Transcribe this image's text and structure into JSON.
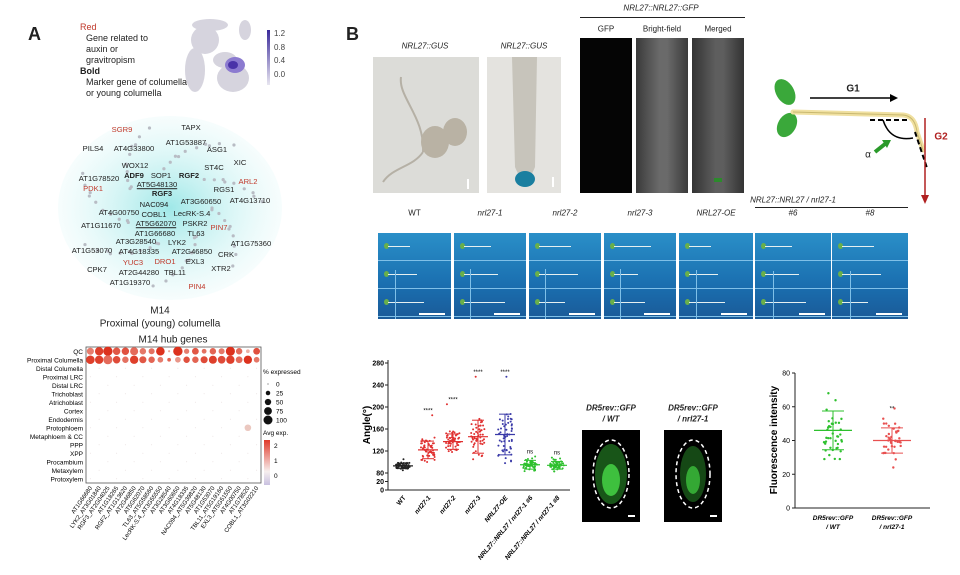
{
  "panel_a": {
    "label": "A",
    "legend": {
      "red_title": "Red",
      "red_desc_1": "Gene related to",
      "red_desc_2": "auxin or",
      "red_desc_3": "gravitropism",
      "bold_title": "Bold",
      "bold_desc_1": "Marker gene of columella",
      "bold_desc_2": "or young columella"
    },
    "umap_scale": [
      "1.2",
      "0.8",
      "0.4",
      "0.0"
    ],
    "network_genes": [
      {
        "name": "SGR9",
        "style": "red"
      },
      {
        "name": "TAPX",
        "style": ""
      },
      {
        "name": "AT1G53887",
        "style": ""
      },
      {
        "name": "PILS4",
        "style": ""
      },
      {
        "name": "AT4G33800",
        "style": ""
      },
      {
        "name": "ASG1",
        "style": ""
      },
      {
        "name": "XIC",
        "style": ""
      },
      {
        "name": "WOX12",
        "style": ""
      },
      {
        "name": "ST4C",
        "style": ""
      },
      {
        "name": "ADF9",
        "style": "bold"
      },
      {
        "name": "SOP1",
        "style": ""
      },
      {
        "name": "RGF2",
        "style": "bold"
      },
      {
        "name": "AT1G78520",
        "style": ""
      },
      {
        "name": "ARL2",
        "style": "red"
      },
      {
        "name": "AT5G48130",
        "style": "ul"
      },
      {
        "name": "PDK1",
        "style": "red"
      },
      {
        "name": "RGS1",
        "style": ""
      },
      {
        "name": "RGF3",
        "style": "bold"
      },
      {
        "name": "AT3G60650",
        "style": ""
      },
      {
        "name": "AT4G13710",
        "style": ""
      },
      {
        "name": "NAC094",
        "style": ""
      },
      {
        "name": "AT4G00750",
        "style": ""
      },
      {
        "name": "COBL1",
        "style": ""
      },
      {
        "name": "LecRK-S.4",
        "style": ""
      },
      {
        "name": "AT1G11670",
        "style": ""
      },
      {
        "name": "AT5G62070",
        "style": "ul"
      },
      {
        "name": "PSKR2",
        "style": ""
      },
      {
        "name": "PIN7",
        "style": "red"
      },
      {
        "name": "AT1G66680",
        "style": ""
      },
      {
        "name": "TL63",
        "style": ""
      },
      {
        "name": "AT3G28540",
        "style": ""
      },
      {
        "name": "LYK2",
        "style": ""
      },
      {
        "name": "AT1G75360",
        "style": ""
      },
      {
        "name": "AT1G53070",
        "style": ""
      },
      {
        "name": "AT4G18335",
        "style": ""
      },
      {
        "name": "AT2G46850",
        "style": ""
      },
      {
        "name": "CRK",
        "style": ""
      },
      {
        "name": "YUC3",
        "style": "red"
      },
      {
        "name": "DRO1",
        "style": "red"
      },
      {
        "name": "EXL3",
        "style": ""
      },
      {
        "name": "CPK7",
        "style": ""
      },
      {
        "name": "AT2G44280",
        "style": ""
      },
      {
        "name": "TBL11",
        "style": ""
      },
      {
        "name": "XTR2",
        "style": ""
      },
      {
        "name": "AT1G19370",
        "style": ""
      },
      {
        "name": "PIN4",
        "style": "red"
      }
    ],
    "module_title": "M14",
    "module_subtitle": "Proximal (young) columella"
  },
  "panel_b": {
    "label": "B",
    "gus_label_1": "NRL27::GUS",
    "gus_label_2": "NRL27::GUS",
    "gfp_title": "NRL27::NRL27::GFP",
    "gfp_channels": [
      "GFP",
      "Bright-field",
      "Merged"
    ],
    "diagram": {
      "g1": "G1",
      "g2": "G2",
      "alpha": "α"
    },
    "lines": [
      "WT",
      "nrl27-1",
      "nrl27-2",
      "nrl27-3",
      "NRL27-OE"
    ],
    "complement_title": "NRL27::NRL27 / nrl27-1",
    "complement_lines": [
      "#6",
      "#8"
    ],
    "dr5_1": {
      "l1": "DR5rev::GFP",
      "l2": "/ WT"
    },
    "dr5_2": {
      "l1": "DR5rev::GFP",
      "l2": "/ nrl27-1"
    }
  },
  "chart_data": [
    {
      "type": "heatmap",
      "title": "M14 hub genes",
      "rows": [
        "QC",
        "Proximal Columella",
        "Distal Columella",
        "Proximal LRC",
        "Distal LRC",
        "Trichoblast",
        "Atrichoblast",
        "Cortex",
        "Endodermis",
        "Protophloem",
        "Metaphloem & CC",
        "PPP",
        "XPP",
        "Procambium",
        "Metaxylem",
        "Protoxylem"
      ],
      "columns": [
        "AT1G66680",
        "LYK2_AT3G01840",
        "RGF3_AT2G04025",
        "AT1G18265",
        "RGF2_AT1G13620",
        "AT2G46850",
        "AT5G62070",
        "TL63_AT5G58560",
        "LecRK-S.4_AT3G55550",
        "AT3G28540",
        "AT3G60650",
        "AT4G18335",
        "NAC094_AT5G39820",
        "AT5G48130",
        "AT1G53070",
        "TBL11_AT5G19160",
        "EXL3_AT5G51550",
        "AT4G00750",
        "AT1G78520",
        "COBL1_AT3G02210"
      ],
      "pct_expressed": {
        "QC": [
          55,
          75,
          95,
          60,
          60,
          70,
          45,
          40,
          80,
          5,
          95,
          30,
          50,
          25,
          45,
          40,
          90,
          45,
          15,
          50
        ],
        "Proximal Columella": [
          80,
          75,
          90,
          60,
          45,
          75,
          55,
          45,
          35,
          15,
          35,
          45,
          45,
          55,
          70,
          65,
          75,
          50,
          75,
          35
        ],
        "Protophloem": {
          "AT1G78520": 50
        }
      },
      "avg_exp": {
        "QC": [
          1.2,
          2.2,
          2.4,
          1.8,
          1.9,
          1.5,
          1.3,
          1.4,
          2.4,
          0.5,
          2.4,
          1.2,
          1.8,
          1.4,
          1.6,
          1.3,
          2.4,
          1.5,
          0.4,
          1.9
        ],
        "Proximal Columella": [
          2.2,
          2.2,
          1.5,
          2,
          1.4,
          2.2,
          1.8,
          1.6,
          1.2,
          1.6,
          0.8,
          1.9,
          1.6,
          2,
          2.2,
          2,
          2.2,
          1.5,
          2.4,
          1.3
        ],
        "Protophloem": {
          "AT1G78520": 0.5
        }
      },
      "size_legend": {
        "title": "% expressed",
        "values": [
          "0",
          "25",
          "50",
          "75",
          "100"
        ]
      },
      "color_legend": {
        "title": "Avg exp.",
        "ticks": [
          "2",
          "1",
          "0"
        ]
      }
    },
    {
      "type": "scatter",
      "ylabel": "Angle(°)",
      "yticks": [
        "0",
        "20",
        "80",
        "120",
        "160",
        "200",
        "240",
        "280"
      ],
      "categories": [
        "WT",
        "nrl27-1",
        "nrl27-2",
        "nrl27-3",
        "NRL27-OE",
        "NRL27::NRL27 / nrl27-1 #6",
        "NRL27::NRL27 / nrl27-1 #8"
      ],
      "mean": [
        93,
        122,
        137,
        146,
        150,
        95,
        94
      ],
      "sd": [
        5,
        16,
        14,
        30,
        37,
        8,
        7
      ],
      "min": [
        85,
        100,
        105,
        105,
        98,
        82,
        83
      ],
      "max": [
        105,
        185,
        205,
        255,
        255,
        110,
        108
      ],
      "significance": [
        "",
        "****",
        "****",
        "****",
        "****",
        "ns",
        "ns"
      ],
      "colors": [
        "#222222",
        "#e03030",
        "#e03030",
        "#e03030",
        "#3a3aa8",
        "#2ec02e",
        "#2ec02e"
      ]
    },
    {
      "type": "scatter",
      "ylabel": "Fluorescence intensity",
      "ylim": [
        0,
        80
      ],
      "yticks": [
        "0",
        "20",
        "40",
        "60",
        "80"
      ],
      "categories": [
        [
          "DR5rev::GFP",
          "/ WT"
        ],
        [
          "DR5rev::GFP",
          "/ nrl27-1"
        ]
      ],
      "mean": [
        46,
        40
      ],
      "sd": [
        11.5,
        7.5
      ],
      "min": [
        29,
        24
      ],
      "max": [
        68,
        59
      ],
      "significance": [
        "",
        "**"
      ],
      "colors": [
        "#2ec02e",
        "#e85050"
      ]
    }
  ]
}
